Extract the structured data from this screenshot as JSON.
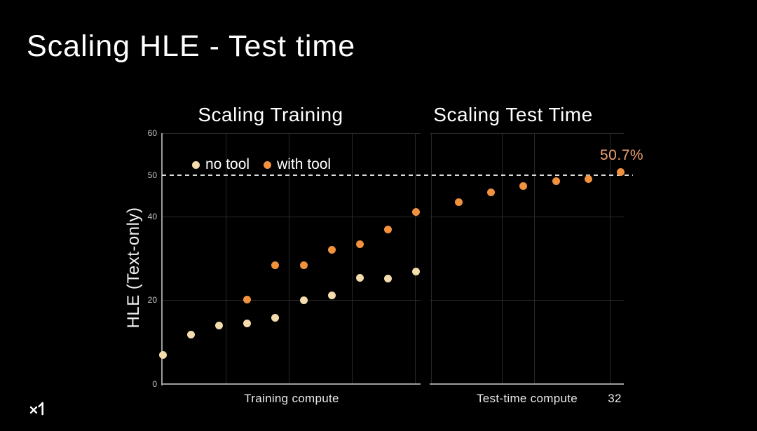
{
  "slide": {
    "title": "Scaling HLE - Test time",
    "logo": "xAI"
  },
  "colors": {
    "background": "#000000",
    "no_tool": "#F4DCAC",
    "with_tool": "#F2923F",
    "annotation": "#F0A173",
    "axis": "#9C9C9C",
    "grid": "#282828",
    "dashed_line": "#DDDDDD",
    "tick_text": "#C9C9C9"
  },
  "chart_data": [
    {
      "type": "scatter",
      "title": "Scaling Training",
      "xlabel": "Training compute",
      "ylabel": "HLE (Text-only)",
      "ylim": [
        0,
        60
      ],
      "y_ticks": [
        60,
        50,
        40,
        20,
        0
      ],
      "grid": true,
      "legend_position": "top-left-inside",
      "reference_line_y": 50,
      "legend": [
        {
          "label": "no tool",
          "color": "#F4DCAC"
        },
        {
          "label": "with tool",
          "color": "#F2923F"
        }
      ],
      "series": [
        {
          "name": "no tool",
          "color": "#F4DCAC",
          "start_index": 0,
          "values": [
            6.8,
            11.8,
            14.0,
            14.5,
            15.7,
            20.0,
            21.2,
            25.3,
            25.2,
            26.8
          ]
        },
        {
          "name": "with tool",
          "color": "#F2923F",
          "start_index": 3,
          "values": [
            20.2,
            28.3,
            28.3,
            32.1,
            33.4,
            37.0,
            41.2
          ]
        }
      ]
    },
    {
      "type": "scatter",
      "title": "Scaling Test Time",
      "xlabel": "Test-time compute",
      "last_x_tick": "32",
      "ylim": [
        0,
        60
      ],
      "grid": true,
      "reference_line_y": 50,
      "annotation": {
        "text": "50.7%",
        "color": "#F0A173"
      },
      "series": [
        {
          "name": "with tool",
          "color": "#F2923F",
          "start_index": 0,
          "values": [
            43.5,
            45.9,
            47.4,
            48.5,
            49.0,
            50.7
          ]
        }
      ]
    }
  ]
}
